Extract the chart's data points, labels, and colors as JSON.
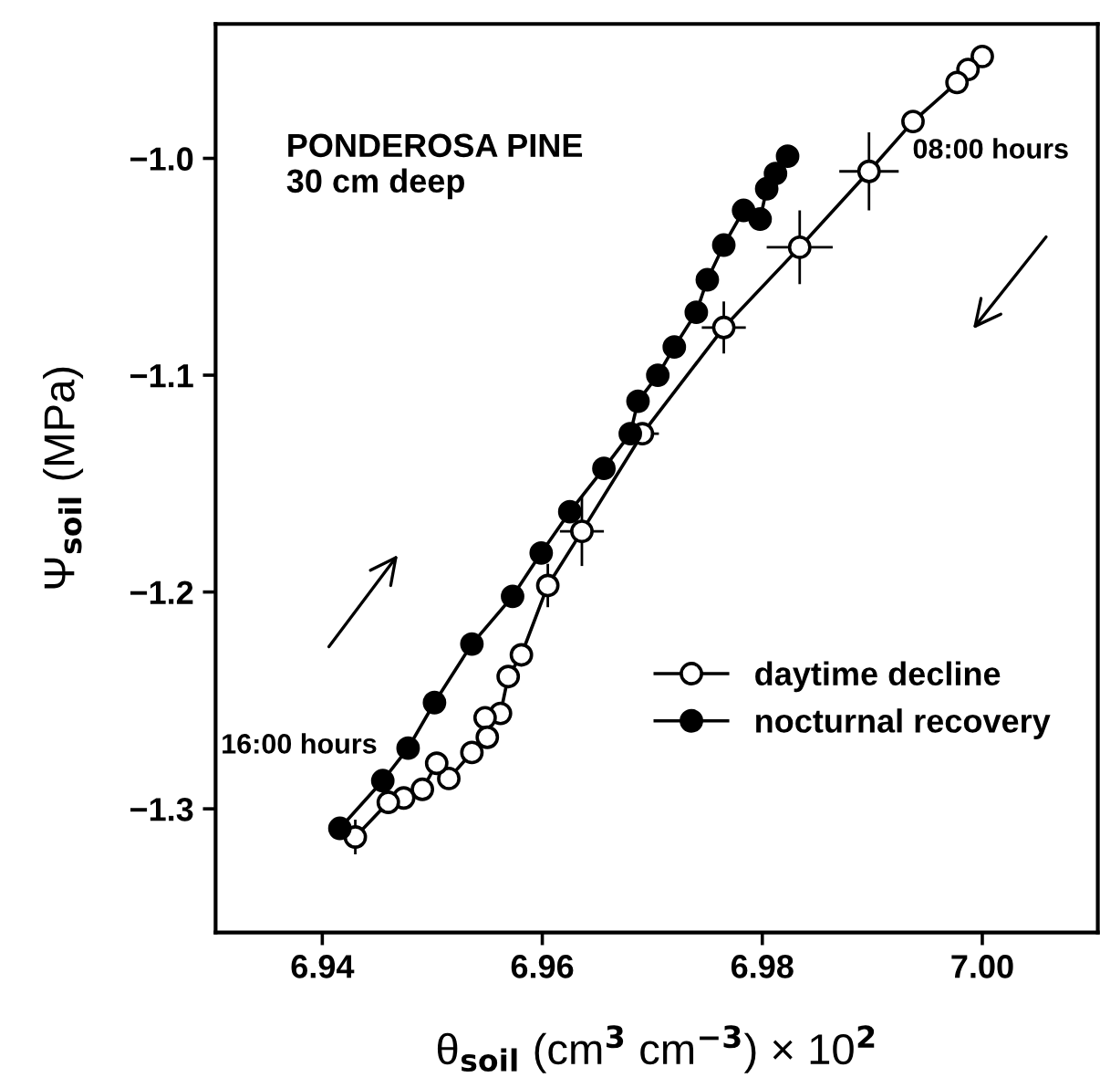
{
  "chart_data": {
    "type": "line",
    "xlabel": "θ$_{soil}$ (cm$^{3}$ cm$^{−3}$) × 10$^{2}$",
    "ylabel": "Ψ$_{soil}$ (MPa)",
    "annotations": [
      "PONDEROSA PINE\n30 cm deep",
      "08:00 hours",
      "16:00 hours"
    ],
    "xlim": [
      6.9303,
      7.0105
    ],
    "ylim": [
      -1.357,
      -0.938
    ],
    "xticks": [
      {
        "value": 6.94,
        "label": "6.94"
      },
      {
        "value": 6.96,
        "label": "6.96"
      },
      {
        "value": 6.98,
        "label": "6.98"
      },
      {
        "value": 7.0,
        "label": "7.00"
      }
    ],
    "yticks": [
      {
        "value": -1.0,
        "label": "−1.0"
      },
      {
        "value": -1.1,
        "label": "−1.1"
      },
      {
        "value": -1.2,
        "label": "−1.2"
      },
      {
        "value": -1.3,
        "label": "−1.3"
      }
    ],
    "grid": false,
    "legend": "bottom right",
    "marker": "circle",
    "line_style": "solid",
    "series": [
      {
        "name": "daytime decline",
        "color": "#ffffff",
        "x": [
          7.0,
          6.9987,
          6.9977,
          6.9937,
          6.9897,
          6.9834,
          6.9765,
          6.9691,
          6.9636,
          6.9605,
          6.9581,
          6.9569,
          6.9562,
          6.9548,
          6.955,
          6.9536,
          6.9515,
          6.9504,
          6.9491,
          6.9474,
          6.946,
          6.943
        ],
        "values": [
          -0.953,
          -0.959,
          -0.965,
          -0.983,
          -1.006,
          -1.041,
          -1.078,
          -1.127,
          -1.172,
          -1.197,
          -1.229,
          -1.239,
          -1.256,
          -1.258,
          -1.267,
          -1.274,
          -1.286,
          -1.279,
          -1.291,
          -1.295,
          -1.297,
          -1.313
        ],
        "errors": [
          null,
          null,
          null,
          null,
          0.018,
          0.017,
          0.012,
          null,
          0.016,
          0.01,
          null,
          null,
          null,
          null,
          null,
          null,
          null,
          null,
          null,
          null,
          null,
          0.008
        ],
        "xerrors": [
          null,
          null,
          null,
          null,
          0.0027,
          0.003,
          0.002,
          0.0015,
          0.002,
          null,
          null,
          null,
          null,
          null,
          null,
          null,
          null,
          null,
          null,
          null,
          null,
          null
        ]
      },
      {
        "name": "nocturnal recovery",
        "color": "#000000",
        "x": [
          6.9416,
          6.9455,
          6.9478,
          6.9502,
          6.9536,
          6.9573,
          6.9599,
          6.9625,
          6.9656,
          6.968,
          6.9687,
          6.9705,
          6.972,
          6.974,
          6.975,
          6.9765,
          6.9783,
          6.9798,
          6.9804,
          6.9812,
          6.9823
        ],
        "values": [
          -1.309,
          -1.287,
          -1.272,
          -1.251,
          -1.224,
          -1.202,
          -1.182,
          -1.163,
          -1.143,
          -1.127,
          -1.112,
          -1.1,
          -1.087,
          -1.071,
          -1.056,
          -1.04,
          -1.024,
          -1.028,
          -1.014,
          -1.007,
          -0.999
        ]
      }
    ]
  }
}
